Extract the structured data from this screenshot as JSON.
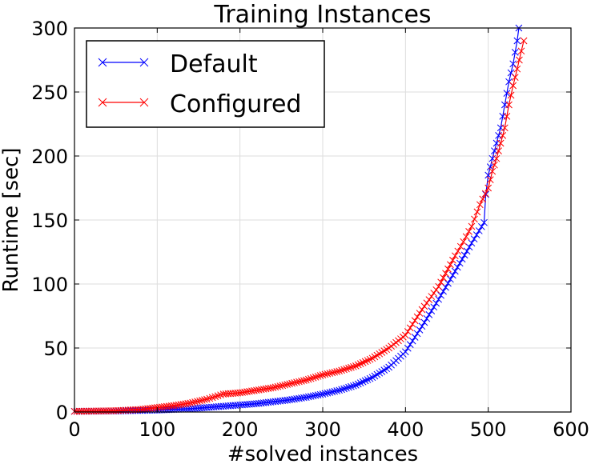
{
  "chart_data": {
    "type": "line",
    "title": "Training Instances",
    "xlabel": "#solved instances",
    "ylabel": "Runtime [sec]",
    "xlim": [
      0,
      600
    ],
    "ylim": [
      0,
      300
    ],
    "xticks": [
      0,
      100,
      200,
      300,
      400,
      500,
      600
    ],
    "yticks": [
      0,
      50,
      100,
      150,
      200,
      250,
      300
    ],
    "xtick_labels": [
      "0",
      "100",
      "200",
      "300",
      "400",
      "500",
      "600"
    ],
    "ytick_labels": [
      "0",
      "50",
      "100",
      "150",
      "200",
      "250",
      "300"
    ],
    "grid": true,
    "legend_position": "top-left",
    "marker": "x",
    "series": [
      {
        "name": "Default",
        "color": "#0000ff",
        "x": [
          0,
          50,
          100,
          120,
          140,
          160,
          180,
          200,
          220,
          240,
          260,
          280,
          300,
          320,
          340,
          360,
          380,
          400,
          420,
          440,
          460,
          480,
          495,
          497,
          500,
          505,
          510,
          515,
          520,
          525,
          530,
          535,
          537
        ],
        "y": [
          0.5,
          0.8,
          1.5,
          2,
          2.5,
          3.5,
          4.5,
          5.5,
          6.5,
          8,
          9.5,
          11.5,
          14,
          17,
          21,
          27,
          35,
          47,
          67,
          88,
          110,
          132,
          148,
          170,
          185,
          198,
          210,
          222,
          240,
          258,
          272,
          290,
          300
        ]
      },
      {
        "name": "Configured",
        "color": "#ff0000",
        "x": [
          0,
          50,
          80,
          100,
          120,
          140,
          160,
          170,
          180,
          200,
          220,
          240,
          260,
          280,
          300,
          320,
          340,
          360,
          380,
          400,
          420,
          440,
          460,
          470,
          480,
          490,
          500,
          505,
          510,
          515,
          520,
          525,
          530,
          535,
          540,
          543
        ],
        "y": [
          0.5,
          1,
          2,
          3.5,
          5,
          7,
          10,
          12,
          14,
          15,
          17,
          19,
          22,
          25,
          29,
          32,
          36,
          42,
          50,
          60,
          80,
          98,
          122,
          133,
          145,
          162,
          175,
          188,
          198,
          210,
          222,
          240,
          255,
          268,
          282,
          290
        ]
      }
    ]
  }
}
